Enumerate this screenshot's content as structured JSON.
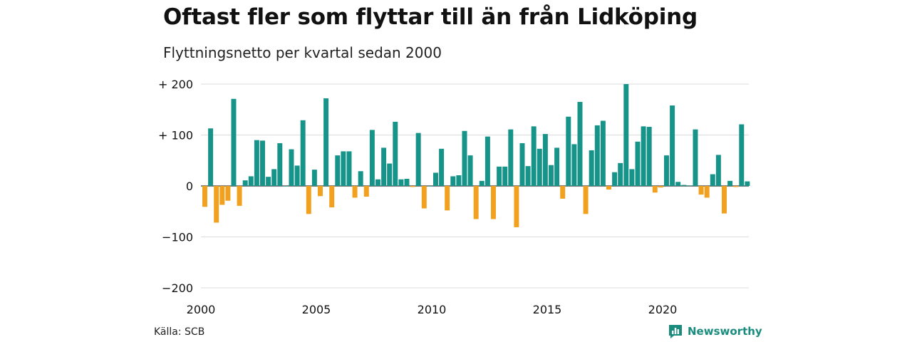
{
  "title": "Oftast fler som flyttar till än från Lidköping",
  "subtitle": "Flyttningsnetto per kvartal sedan 2000",
  "source": "Källa: SCB",
  "brand": "Newsworthy",
  "colors": {
    "positive": "#17948a",
    "negative": "#f2a11f",
    "grid": "#dcdcdc"
  },
  "chart_data": {
    "type": "bar",
    "title": "Oftast fler som flyttar till än från Lidköping",
    "subtitle": "Flyttningsnetto per kvartal sedan 2000",
    "ylim": [
      -200,
      200
    ],
    "yticks": [
      200,
      100,
      0,
      -100,
      -200
    ],
    "ytick_labels": [
      "+ 200",
      "+ 100",
      "0",
      "−100",
      "−200"
    ],
    "xticks": [
      2000,
      2005,
      2010,
      2015,
      2020
    ],
    "xtick_labels": [
      "2000",
      "2005",
      "2010",
      "2015",
      "2020"
    ],
    "x_start": 2000,
    "x_step": 0.25,
    "grid": true,
    "values": [
      -41,
      113,
      -72,
      -37,
      -29,
      171,
      -39,
      11,
      19,
      90,
      89,
      18,
      33,
      84,
      0,
      72,
      40,
      129,
      -55,
      32,
      -20,
      172,
      -42,
      60,
      68,
      68,
      -23,
      29,
      -21,
      110,
      13,
      75,
      44,
      126,
      13,
      14,
      -2,
      104,
      -44,
      0,
      26,
      73,
      -48,
      19,
      21,
      108,
      60,
      -65,
      10,
      97,
      -65,
      38,
      38,
      111,
      -81,
      84,
      39,
      117,
      73,
      102,
      41,
      75,
      -25,
      136,
      82,
      165,
      -55,
      70,
      119,
      128,
      -7,
      27,
      45,
      200,
      33,
      87,
      117,
      116,
      -13,
      -3,
      60,
      158,
      8,
      2,
      1,
      111,
      -17,
      -23,
      23,
      61,
      -54,
      10,
      -2,
      121,
      9
    ]
  }
}
